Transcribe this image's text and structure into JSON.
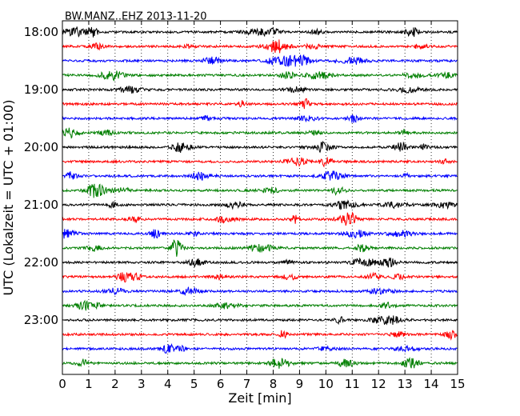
{
  "chart_data": {
    "type": "line",
    "title": "BW.MANZ..EHZ 2013-11-20",
    "xlabel": "Zeit  [min]",
    "ylabel": "UTC (Lokalzeit = UTC + 01:00)",
    "xlim": [
      0,
      15
    ],
    "x_ticks": [
      0,
      1,
      2,
      3,
      4,
      5,
      6,
      7,
      8,
      9,
      10,
      11,
      12,
      13,
      14,
      15
    ],
    "y_tick_labels": [
      "18:00",
      "19:00",
      "20:00",
      "21:00",
      "22:00",
      "23:00"
    ],
    "grid": "vertical-dotted",
    "trace_colors": [
      "#000000",
      "#ff0000",
      "#0000ff",
      "#007f00"
    ],
    "traces": [
      {
        "start": "18:00",
        "color": "#000000"
      },
      {
        "start": "18:15",
        "color": "#ff0000"
      },
      {
        "start": "18:30",
        "color": "#0000ff"
      },
      {
        "start": "18:45",
        "color": "#007f00"
      },
      {
        "start": "19:00",
        "color": "#000000"
      },
      {
        "start": "19:15",
        "color": "#ff0000"
      },
      {
        "start": "19:30",
        "color": "#0000ff"
      },
      {
        "start": "19:45",
        "color": "#007f00"
      },
      {
        "start": "20:00",
        "color": "#000000"
      },
      {
        "start": "20:15",
        "color": "#ff0000"
      },
      {
        "start": "20:30",
        "color": "#0000ff"
      },
      {
        "start": "20:45",
        "color": "#007f00"
      },
      {
        "start": "21:00",
        "color": "#000000"
      },
      {
        "start": "21:15",
        "color": "#ff0000"
      },
      {
        "start": "21:30",
        "color": "#0000ff"
      },
      {
        "start": "21:45",
        "color": "#007f00"
      },
      {
        "start": "22:00",
        "color": "#000000"
      },
      {
        "start": "22:15",
        "color": "#ff0000"
      },
      {
        "start": "22:30",
        "color": "#0000ff"
      },
      {
        "start": "22:45",
        "color": "#007f00"
      },
      {
        "start": "23:00",
        "color": "#000000"
      },
      {
        "start": "23:15",
        "color": "#ff0000"
      },
      {
        "start": "23:30",
        "color": "#0000ff"
      },
      {
        "start": "23:45",
        "color": "#007f00"
      }
    ]
  }
}
